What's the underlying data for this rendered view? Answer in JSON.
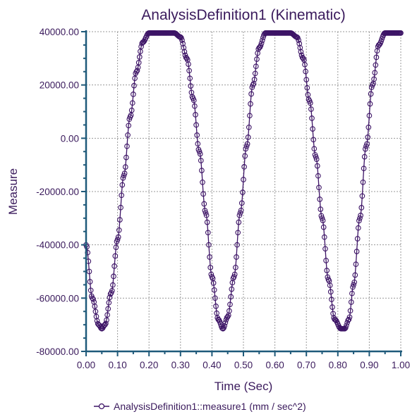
{
  "chart_data": {
    "type": "line",
    "title": "AnalysisDefinition1 (Kinematic)",
    "xlabel": "Time (Sec)",
    "ylabel": "Measure",
    "xlim": [
      0,
      1
    ],
    "ylim": [
      -80000,
      40000
    ],
    "x_ticks": [
      "0.00",
      "0.10",
      "0.20",
      "0.30",
      "0.40",
      "0.50",
      "0.60",
      "0.70",
      "0.80",
      "0.90",
      "1.00"
    ],
    "x_tick_values": [
      0,
      0.1,
      0.2,
      0.3,
      0.4,
      0.5,
      0.6,
      0.7,
      0.8,
      0.9,
      1.0
    ],
    "y_ticks": [
      "40000.00",
      "20000.00",
      "0.00",
      "-20000.00",
      "-40000.00",
      "-60000.00",
      "-80000.00"
    ],
    "y_tick_values": [
      40000,
      20000,
      0,
      -20000,
      -40000,
      -60000,
      -80000
    ],
    "grid": true,
    "legend_position": "bottom",
    "series": [
      {
        "name": "AnalysisDefinition1::measure1 (mm / sec^2)",
        "color": "#3d1466",
        "marker": "circle",
        "x": [
          0.0,
          0.02,
          0.04,
          0.05,
          0.06,
          0.08,
          0.1,
          0.12,
          0.14,
          0.16,
          0.18,
          0.2,
          0.22,
          0.24,
          0.26,
          0.28,
          0.3,
          0.32,
          0.34,
          0.36,
          0.38,
          0.4,
          0.42,
          0.435,
          0.45,
          0.47,
          0.49,
          0.51,
          0.53,
          0.55,
          0.57,
          0.59,
          0.61,
          0.63,
          0.65,
          0.67,
          0.69,
          0.71,
          0.73,
          0.75,
          0.77,
          0.79,
          0.81,
          0.822,
          0.835,
          0.85,
          0.87,
          0.89,
          0.91,
          0.93,
          0.95,
          0.97,
          0.99,
          1.0
        ],
        "y": [
          -40000,
          -60000,
          -70000,
          -71500,
          -70000,
          -58000,
          -38000,
          -14000,
          8000,
          25000,
          36000,
          39500,
          39500,
          39500,
          39500,
          39500,
          38000,
          30000,
          15000,
          -5000,
          -28000,
          -52000,
          -68000,
          -71500,
          -67000,
          -52000,
          -28000,
          -3000,
          20000,
          34000,
          39500,
          39500,
          39500,
          39500,
          39500,
          38000,
          30000,
          14000,
          -7000,
          -30000,
          -53000,
          -68000,
          -71500,
          -71500,
          -68000,
          -55000,
          -30000,
          -3000,
          20000,
          35000,
          39500,
          39500,
          39500,
          39500
        ]
      }
    ]
  },
  "legend": {
    "label": "AnalysisDefinition1::measure1 (mm / sec^2)"
  }
}
